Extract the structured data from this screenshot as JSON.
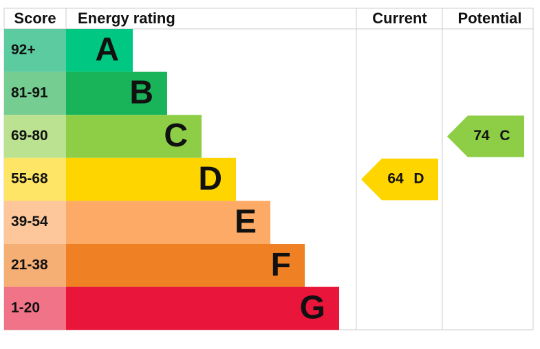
{
  "header": {
    "score": "Score",
    "rating": "Energy rating",
    "current": "Current",
    "potential": "Potential"
  },
  "bands": [
    {
      "score": "92+",
      "letter": "A",
      "color": "#00c781",
      "score_color": "#5ccba0"
    },
    {
      "score": "81-91",
      "letter": "B",
      "color": "#19b459",
      "score_color": "#75cd92"
    },
    {
      "score": "69-80",
      "letter": "C",
      "color": "#8dce46",
      "score_color": "#bbe290"
    },
    {
      "score": "55-68",
      "letter": "D",
      "color": "#ffd500",
      "score_color": "#ffe566"
    },
    {
      "score": "39-54",
      "letter": "E",
      "color": "#fcaa65",
      "score_color": "#fdc79b"
    },
    {
      "score": "21-38",
      "letter": "F",
      "color": "#ef8023",
      "score_color": "#f5ae74"
    },
    {
      "score": "1-20",
      "letter": "G",
      "color": "#e9153b",
      "score_color": "#f07388"
    }
  ],
  "current": {
    "value": 64,
    "letter": "D"
  },
  "potential": {
    "value": 74,
    "letter": "C"
  }
}
